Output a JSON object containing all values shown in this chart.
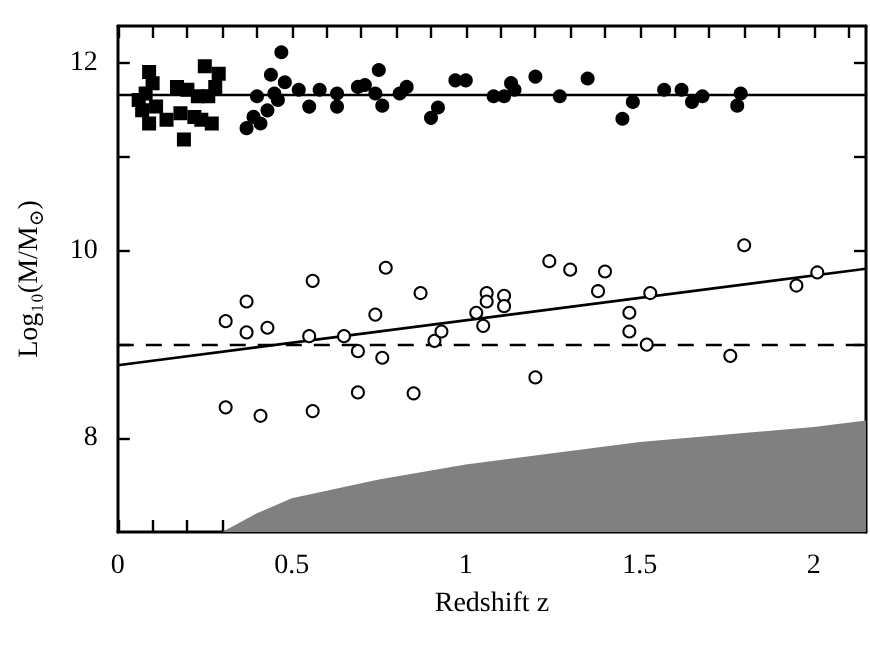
{
  "chart_data": {
    "type": "scatter",
    "xlabel": "Redshift z",
    "ylabel": "Log₁₀(M/M$_{⊙}$)",
    "xlim": [
      0,
      2.15
    ],
    "ylim": [
      7,
      12.4
    ],
    "xticks": [
      0,
      {
        "value": 0.1,
        "label": null
      },
      {
        "value": 0.2,
        "label": null
      },
      {
        "value": 0.3,
        "label": null
      },
      {
        "value": 0.4,
        "label": null
      },
      0.5,
      {
        "value": 0.6,
        "label": null
      },
      {
        "value": 0.7,
        "label": null
      },
      {
        "value": 0.8,
        "label": null
      },
      {
        "value": 0.9,
        "label": null
      },
      1,
      {
        "value": 1.1,
        "label": null
      },
      {
        "value": 1.2,
        "label": null
      },
      {
        "value": 1.3,
        "label": null
      },
      {
        "value": 1.4,
        "label": null
      },
      1.5,
      {
        "value": 1.6,
        "label": null
      },
      {
        "value": 1.7,
        "label": null
      },
      {
        "value": 1.8,
        "label": null
      },
      {
        "value": 1.9,
        "label": null
      },
      2,
      {
        "value": 2.1,
        "label": null
      }
    ],
    "yticks": [
      8,
      {
        "value": 9,
        "label": null
      },
      10,
      {
        "value": 11,
        "label": null
      },
      12
    ],
    "grid": false,
    "ref_lines": [
      {
        "axis": "y",
        "value": 11.67,
        "line_style": "solid",
        "color": "#000000"
      },
      {
        "axis": "y",
        "value": 9.0,
        "line_style": "dashed",
        "color": "#000000"
      }
    ],
    "series": [
      {
        "type": "area",
        "color": "#808080",
        "x": [
          0.3,
          0.4,
          0.5,
          0.75,
          1,
          1.5,
          2,
          2.15
        ],
        "values": [
          7.0,
          7.2,
          7.36,
          7.56,
          7.72,
          7.96,
          8.12,
          8.19
        ]
      },
      {
        "type": "line",
        "color": "#000000",
        "line_style": "solid",
        "marker": "none",
        "x": [
          0,
          2.15
        ],
        "values": [
          8.78,
          9.81
        ]
      },
      {
        "marker": "square",
        "color": "#000000",
        "x": [
          0.09,
          0.1,
          0.08,
          0.06,
          0.07,
          0.09,
          0.11,
          0.14,
          0.17,
          0.19,
          0.2,
          0.22,
          0.23,
          0.25,
          0.26,
          0.27,
          0.28,
          0.29,
          0.18,
          0.24
        ],
        "values": [
          11.91,
          11.79,
          11.68,
          11.61,
          11.5,
          11.36,
          11.54,
          11.4,
          11.75,
          11.19,
          11.72,
          11.43,
          11.65,
          11.97,
          11.65,
          11.36,
          11.75,
          11.89,
          11.47,
          11.4
        ]
      },
      {
        "marker": "circle",
        "color": "#000000",
        "x": [
          0.37,
          0.39,
          0.41,
          0.43,
          0.4,
          0.44,
          0.45,
          0.47,
          0.46,
          0.48,
          0.52,
          0.55,
          0.58,
          0.63,
          0.63,
          0.69,
          0.71,
          0.74,
          0.75,
          0.76,
          0.77,
          0.81,
          0.83,
          0.9,
          0.92,
          0.97,
          1.0,
          1.08,
          1.11,
          1.13,
          1.14,
          1.2,
          1.27,
          1.35,
          1.45,
          1.48,
          1.57,
          1.62,
          1.65,
          1.68,
          1.78,
          1.79
        ],
        "values": [
          11.31,
          11.43,
          11.36,
          11.5,
          11.65,
          11.88,
          11.68,
          12.12,
          11.61,
          11.8,
          11.72,
          11.54,
          11.72,
          11.68,
          11.54,
          11.75,
          11.77,
          11.68,
          11.93,
          11.55,
          null,
          11.68,
          11.75,
          11.42,
          11.53,
          11.82,
          11.82,
          11.65,
          11.65,
          11.79,
          11.72,
          11.86,
          11.65,
          11.84,
          11.41,
          11.59,
          11.72,
          11.72,
          11.59,
          11.65,
          11.55,
          11.68
        ]
      },
      {
        "marker": "circle",
        "color": "#ffffff",
        "x": [
          0.31,
          0.37,
          0.56,
          0.74,
          0.77,
          0.87,
          0.37,
          0.43,
          0.55,
          0.65,
          0.69,
          0.76,
          0.91,
          0.93,
          0.31,
          0.41,
          0.56,
          0.69,
          0.85,
          1.03,
          1.06,
          1.06,
          1.11,
          1.11,
          1.24,
          1.3,
          1.38,
          1.4,
          1.47,
          1.53,
          1.8,
          1.95,
          2.01,
          1.05,
          1.47,
          1.52,
          1.2,
          1.76
        ],
        "values": [
          9.25,
          9.46,
          9.68,
          9.32,
          9.82,
          9.55,
          9.13,
          9.18,
          9.09,
          9.09,
          8.93,
          8.86,
          9.04,
          9.14,
          8.33,
          8.24,
          8.29,
          8.49,
          8.48,
          9.34,
          9.55,
          9.46,
          9.52,
          9.41,
          9.89,
          9.8,
          9.57,
          9.78,
          9.34,
          9.55,
          10.06,
          9.63,
          9.77,
          9.2,
          9.14,
          9.0,
          8.65,
          8.88
        ]
      }
    ]
  }
}
